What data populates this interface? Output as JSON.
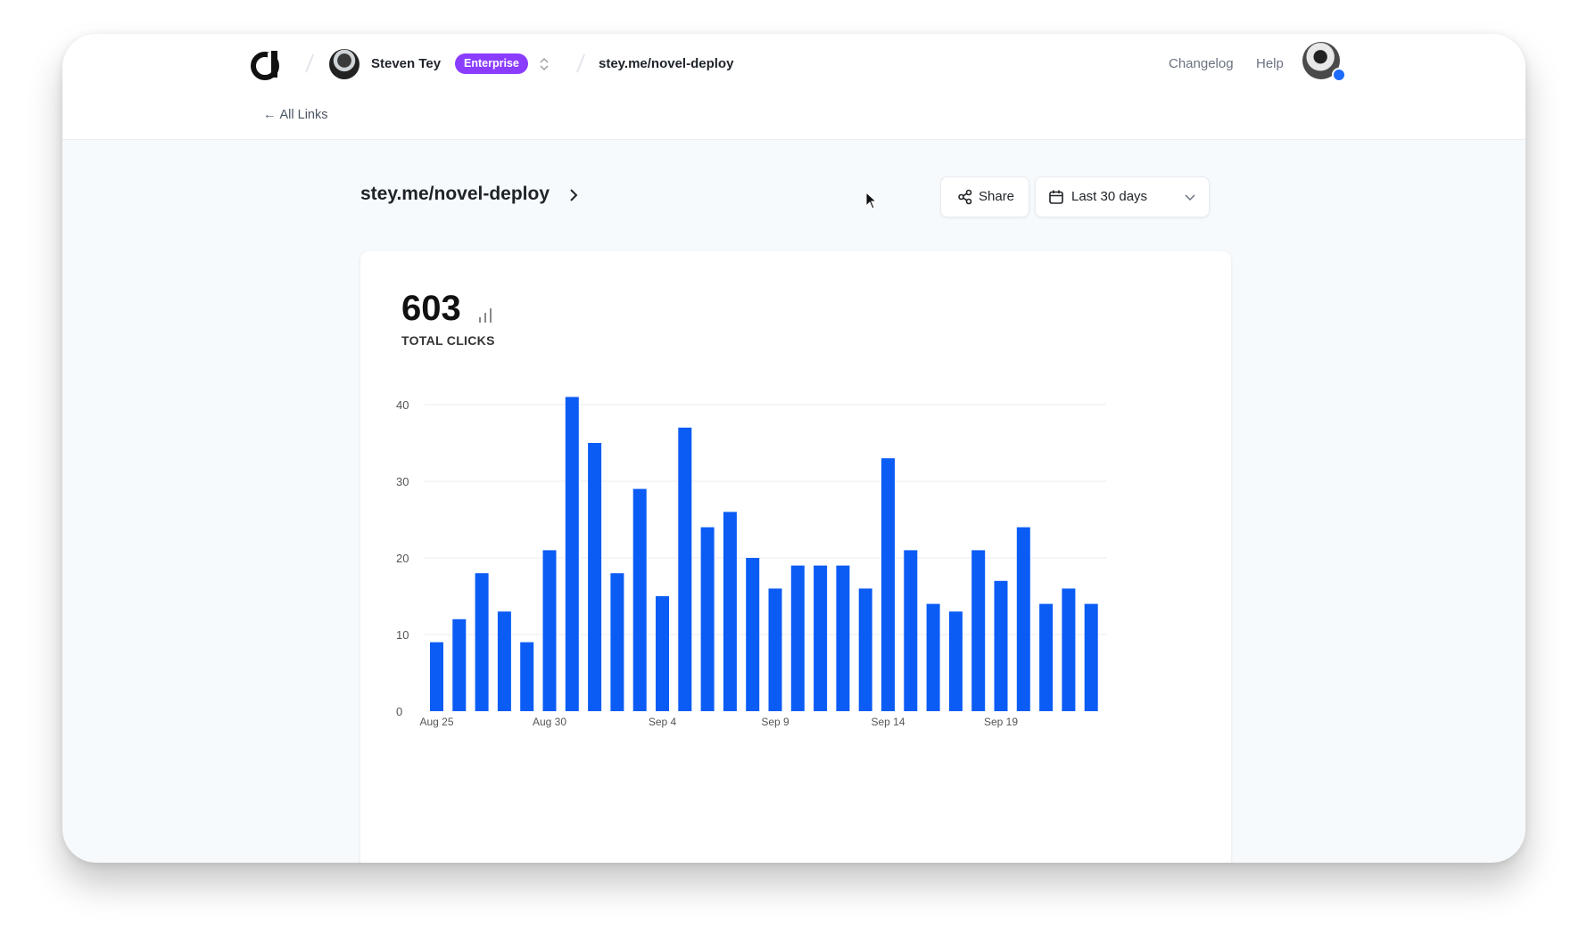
{
  "header": {
    "user_name": "Steven Tey",
    "plan_badge": "Enterprise",
    "current_link": "stey.me/novel-deploy",
    "nav": [
      "Changelog",
      "Help"
    ],
    "back_label": "All Links"
  },
  "toolbar": {
    "page_title": "stey.me/novel-deploy",
    "share_label": "Share",
    "date_range": "Last 30 days"
  },
  "stats": {
    "total_clicks": "603",
    "total_clicks_label": "TOTAL CLICKS"
  },
  "colors": {
    "accent": "#0b5cf5",
    "badge": "#8b3dff"
  },
  "chart_data": {
    "type": "bar",
    "title": "",
    "xlabel": "",
    "ylabel": "",
    "ylim": [
      0,
      40
    ],
    "yticks": [
      0,
      10,
      20,
      30,
      40
    ],
    "categories": [
      "Aug 25",
      "Aug 26",
      "Aug 27",
      "Aug 28",
      "Aug 29",
      "Aug 30",
      "Aug 31",
      "Sep 1",
      "Sep 2",
      "Sep 3",
      "Sep 4",
      "Sep 5",
      "Sep 6",
      "Sep 7",
      "Sep 8",
      "Sep 9",
      "Sep 10",
      "Sep 11",
      "Sep 12",
      "Sep 13",
      "Sep 14",
      "Sep 15",
      "Sep 16",
      "Sep 17",
      "Sep 18",
      "Sep 19",
      "Sep 20",
      "Sep 21",
      "Sep 22",
      "Sep 23"
    ],
    "values": [
      9,
      12,
      18,
      13,
      9,
      21,
      41,
      35,
      18,
      29,
      15,
      37,
      24,
      26,
      20,
      16,
      19,
      19,
      19,
      16,
      33,
      21,
      14,
      13,
      21,
      17,
      24,
      14,
      16,
      14
    ],
    "visible_xticks": [
      "Aug 25",
      "Aug 30",
      "Sep 4",
      "Sep 9",
      "Sep 14",
      "Sep 19"
    ]
  }
}
